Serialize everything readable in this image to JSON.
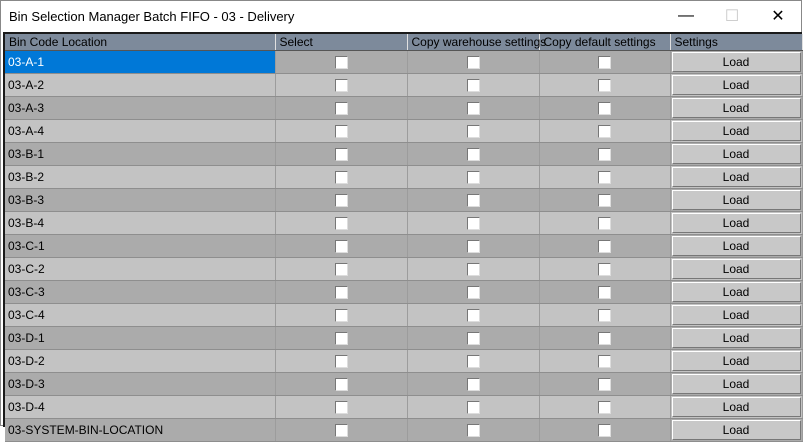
{
  "window": {
    "title": "Bin Selection Manager Batch FIFO - 03 - Delivery",
    "minimize_icon": "minimize-icon",
    "maximize_icon": "maximize-icon",
    "close_icon": "close-icon"
  },
  "grid": {
    "columns": [
      "Bin Code Location",
      "Select",
      "Copy warehouse settings",
      "Copy default settings",
      "Settings"
    ],
    "button_label": "Load",
    "selected_row": 0,
    "selection_color": "#0078d7",
    "rows": [
      {
        "code": "03-A-1",
        "select": false,
        "copy_warehouse": false,
        "copy_default": false
      },
      {
        "code": "03-A-2",
        "select": false,
        "copy_warehouse": false,
        "copy_default": false
      },
      {
        "code": "03-A-3",
        "select": false,
        "copy_warehouse": false,
        "copy_default": false
      },
      {
        "code": "03-A-4",
        "select": false,
        "copy_warehouse": false,
        "copy_default": false
      },
      {
        "code": "03-B-1",
        "select": false,
        "copy_warehouse": false,
        "copy_default": false
      },
      {
        "code": "03-B-2",
        "select": false,
        "copy_warehouse": false,
        "copy_default": false
      },
      {
        "code": "03-B-3",
        "select": false,
        "copy_warehouse": false,
        "copy_default": false
      },
      {
        "code": "03-B-4",
        "select": false,
        "copy_warehouse": false,
        "copy_default": false
      },
      {
        "code": "03-C-1",
        "select": false,
        "copy_warehouse": false,
        "copy_default": false
      },
      {
        "code": "03-C-2",
        "select": false,
        "copy_warehouse": false,
        "copy_default": false
      },
      {
        "code": "03-C-3",
        "select": false,
        "copy_warehouse": false,
        "copy_default": false
      },
      {
        "code": "03-C-4",
        "select": false,
        "copy_warehouse": false,
        "copy_default": false
      },
      {
        "code": "03-D-1",
        "select": false,
        "copy_warehouse": false,
        "copy_default": false
      },
      {
        "code": "03-D-2",
        "select": false,
        "copy_warehouse": false,
        "copy_default": false
      },
      {
        "code": "03-D-3",
        "select": false,
        "copy_warehouse": false,
        "copy_default": false
      },
      {
        "code": "03-D-4",
        "select": false,
        "copy_warehouse": false,
        "copy_default": false
      },
      {
        "code": "03-SYSTEM-BIN-LOCATION",
        "select": false,
        "copy_warehouse": false,
        "copy_default": false
      }
    ]
  }
}
